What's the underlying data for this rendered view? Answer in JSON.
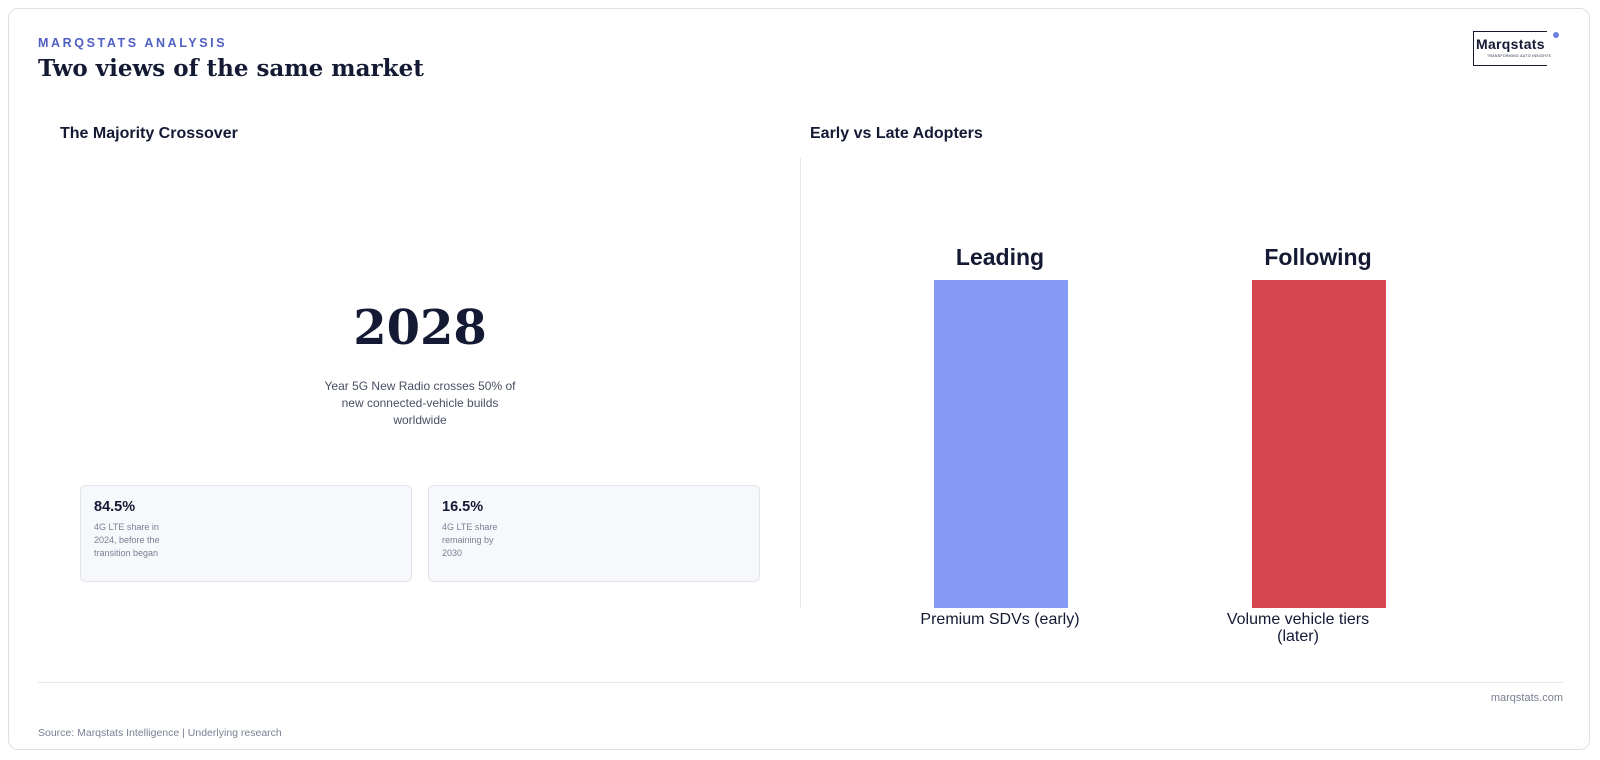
{
  "header": {
    "kicker": "MARQSTATS ANALYSIS",
    "title": "Two views of the same market",
    "logo": {
      "name": "Marqstats",
      "tagline": "TRANSFORMING AUTO INSIGHTS"
    }
  },
  "left_panel": {
    "title": "The Majority Crossover",
    "headline": "2028",
    "caption": "Year 5G New Radio crosses 50% of new connected-vehicle builds worldwide",
    "stats": [
      {
        "value": "84.5%",
        "text": "4G LTE share in 2024, before the transition began"
      },
      {
        "value": "16.5%",
        "text": "4G LTE share remaining by 2030"
      }
    ]
  },
  "right_panel": {
    "title": "Early vs Late Adopters",
    "bars": [
      {
        "label": "Leading",
        "category": "Premium SDVs (early)"
      },
      {
        "label": "Following",
        "category": "Volume vehicle tiers (later)"
      }
    ]
  },
  "footer": {
    "site": "marqstats.com",
    "source": "Source: Marqstats Intelligence | Underlying research"
  }
}
